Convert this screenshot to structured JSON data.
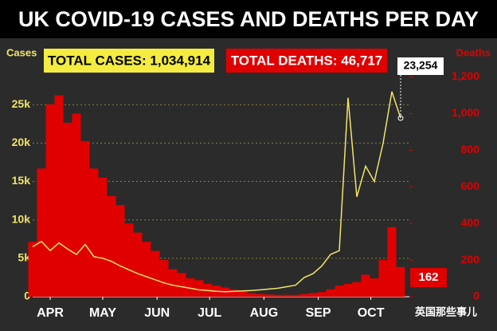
{
  "chart_data": {
    "type": "combo",
    "title": "UK COVID-19 CASES AND DEATHS PER DAY",
    "annotations": [
      "TOTAL CASES: 1,034,914",
      "TOTAL DEATHS: 46,717"
    ],
    "watermark": "英国那些事儿",
    "y_label": "Cases",
    "y2_label": "Deaths",
    "x": [
      -10,
      -5,
      0,
      5,
      10,
      15,
      20,
      25,
      30,
      35,
      40,
      45,
      50,
      55,
      60,
      65,
      70,
      75,
      80,
      85,
      90,
      95,
      100,
      105,
      110,
      115,
      120,
      125,
      130,
      135,
      140,
      145,
      150,
      155,
      160,
      165,
      170,
      175,
      180,
      185,
      190,
      195,
      200
    ],
    "xlim": [
      -10,
      205
    ],
    "xticks": [
      {
        "value": 0,
        "label": "APR"
      },
      {
        "value": 30,
        "label": "MAY"
      },
      {
        "value": 61,
        "label": "JUN"
      },
      {
        "value": 91,
        "label": "JUL"
      },
      {
        "value": 122,
        "label": "AUG"
      },
      {
        "value": 153,
        "label": "SEP"
      },
      {
        "value": 183,
        "label": "OCT"
      }
    ],
    "ylim": [
      0,
      29800
    ],
    "yticks": [
      0,
      {
        "value": 5000,
        "label": "5k"
      },
      {
        "value": 10000,
        "label": "10k"
      },
      {
        "value": 15000,
        "label": "15k"
      },
      {
        "value": 20000,
        "label": "20k"
      },
      {
        "value": 25000,
        "label": "25k"
      }
    ],
    "y2lim": [
      0,
      1250
    ],
    "y2ticks": [
      0,
      200,
      400,
      600,
      800,
      {
        "value": 1000,
        "label": "1,000"
      },
      {
        "value": 1200,
        "label": "1,200"
      }
    ],
    "grid": true,
    "series": [
      {
        "type": "bar",
        "axis": "y2",
        "color": "#e00000",
        "values": [
          300,
          700,
          1050,
          1100,
          950,
          1000,
          850,
          700,
          650,
          550,
          500,
          400,
          350,
          300,
          250,
          200,
          150,
          130,
          100,
          90,
          70,
          60,
          50,
          40,
          30,
          20,
          15,
          12,
          10,
          10,
          10,
          15,
          20,
          25,
          40,
          60,
          70,
          80,
          120,
          100,
          200,
          380,
          162
        ],
        "value_labels": [
          null,
          null,
          null,
          null,
          null,
          null,
          null,
          null,
          null,
          null,
          null,
          null,
          null,
          null,
          null,
          null,
          null,
          null,
          null,
          null,
          null,
          null,
          null,
          null,
          null,
          null,
          null,
          null,
          null,
          null,
          null,
          null,
          null,
          null,
          null,
          null,
          null,
          null,
          null,
          null,
          null,
          null,
          "162"
        ]
      },
      {
        "type": "line",
        "color": "#f0e46a",
        "values": [
          6500,
          7200,
          6000,
          7000,
          6200,
          5500,
          6800,
          5200,
          5000,
          4600,
          4000,
          3500,
          3000,
          2600,
          2200,
          1800,
          1500,
          1300,
          1100,
          900,
          800,
          700,
          650,
          700,
          750,
          800,
          900,
          1000,
          1100,
          1300,
          1500,
          2500,
          3000,
          4000,
          5500,
          6000,
          25900,
          13000,
          17000,
          15000,
          20000,
          26700,
          23254
        ],
        "value_labels": [
          null,
          null,
          null,
          null,
          null,
          null,
          null,
          null,
          null,
          null,
          null,
          null,
          null,
          null,
          null,
          null,
          null,
          null,
          null,
          null,
          null,
          null,
          null,
          null,
          null,
          null,
          null,
          null,
          null,
          null,
          null,
          null,
          null,
          null,
          null,
          null,
          null,
          null,
          null,
          null,
          null,
          null,
          "23,254"
        ]
      }
    ]
  }
}
